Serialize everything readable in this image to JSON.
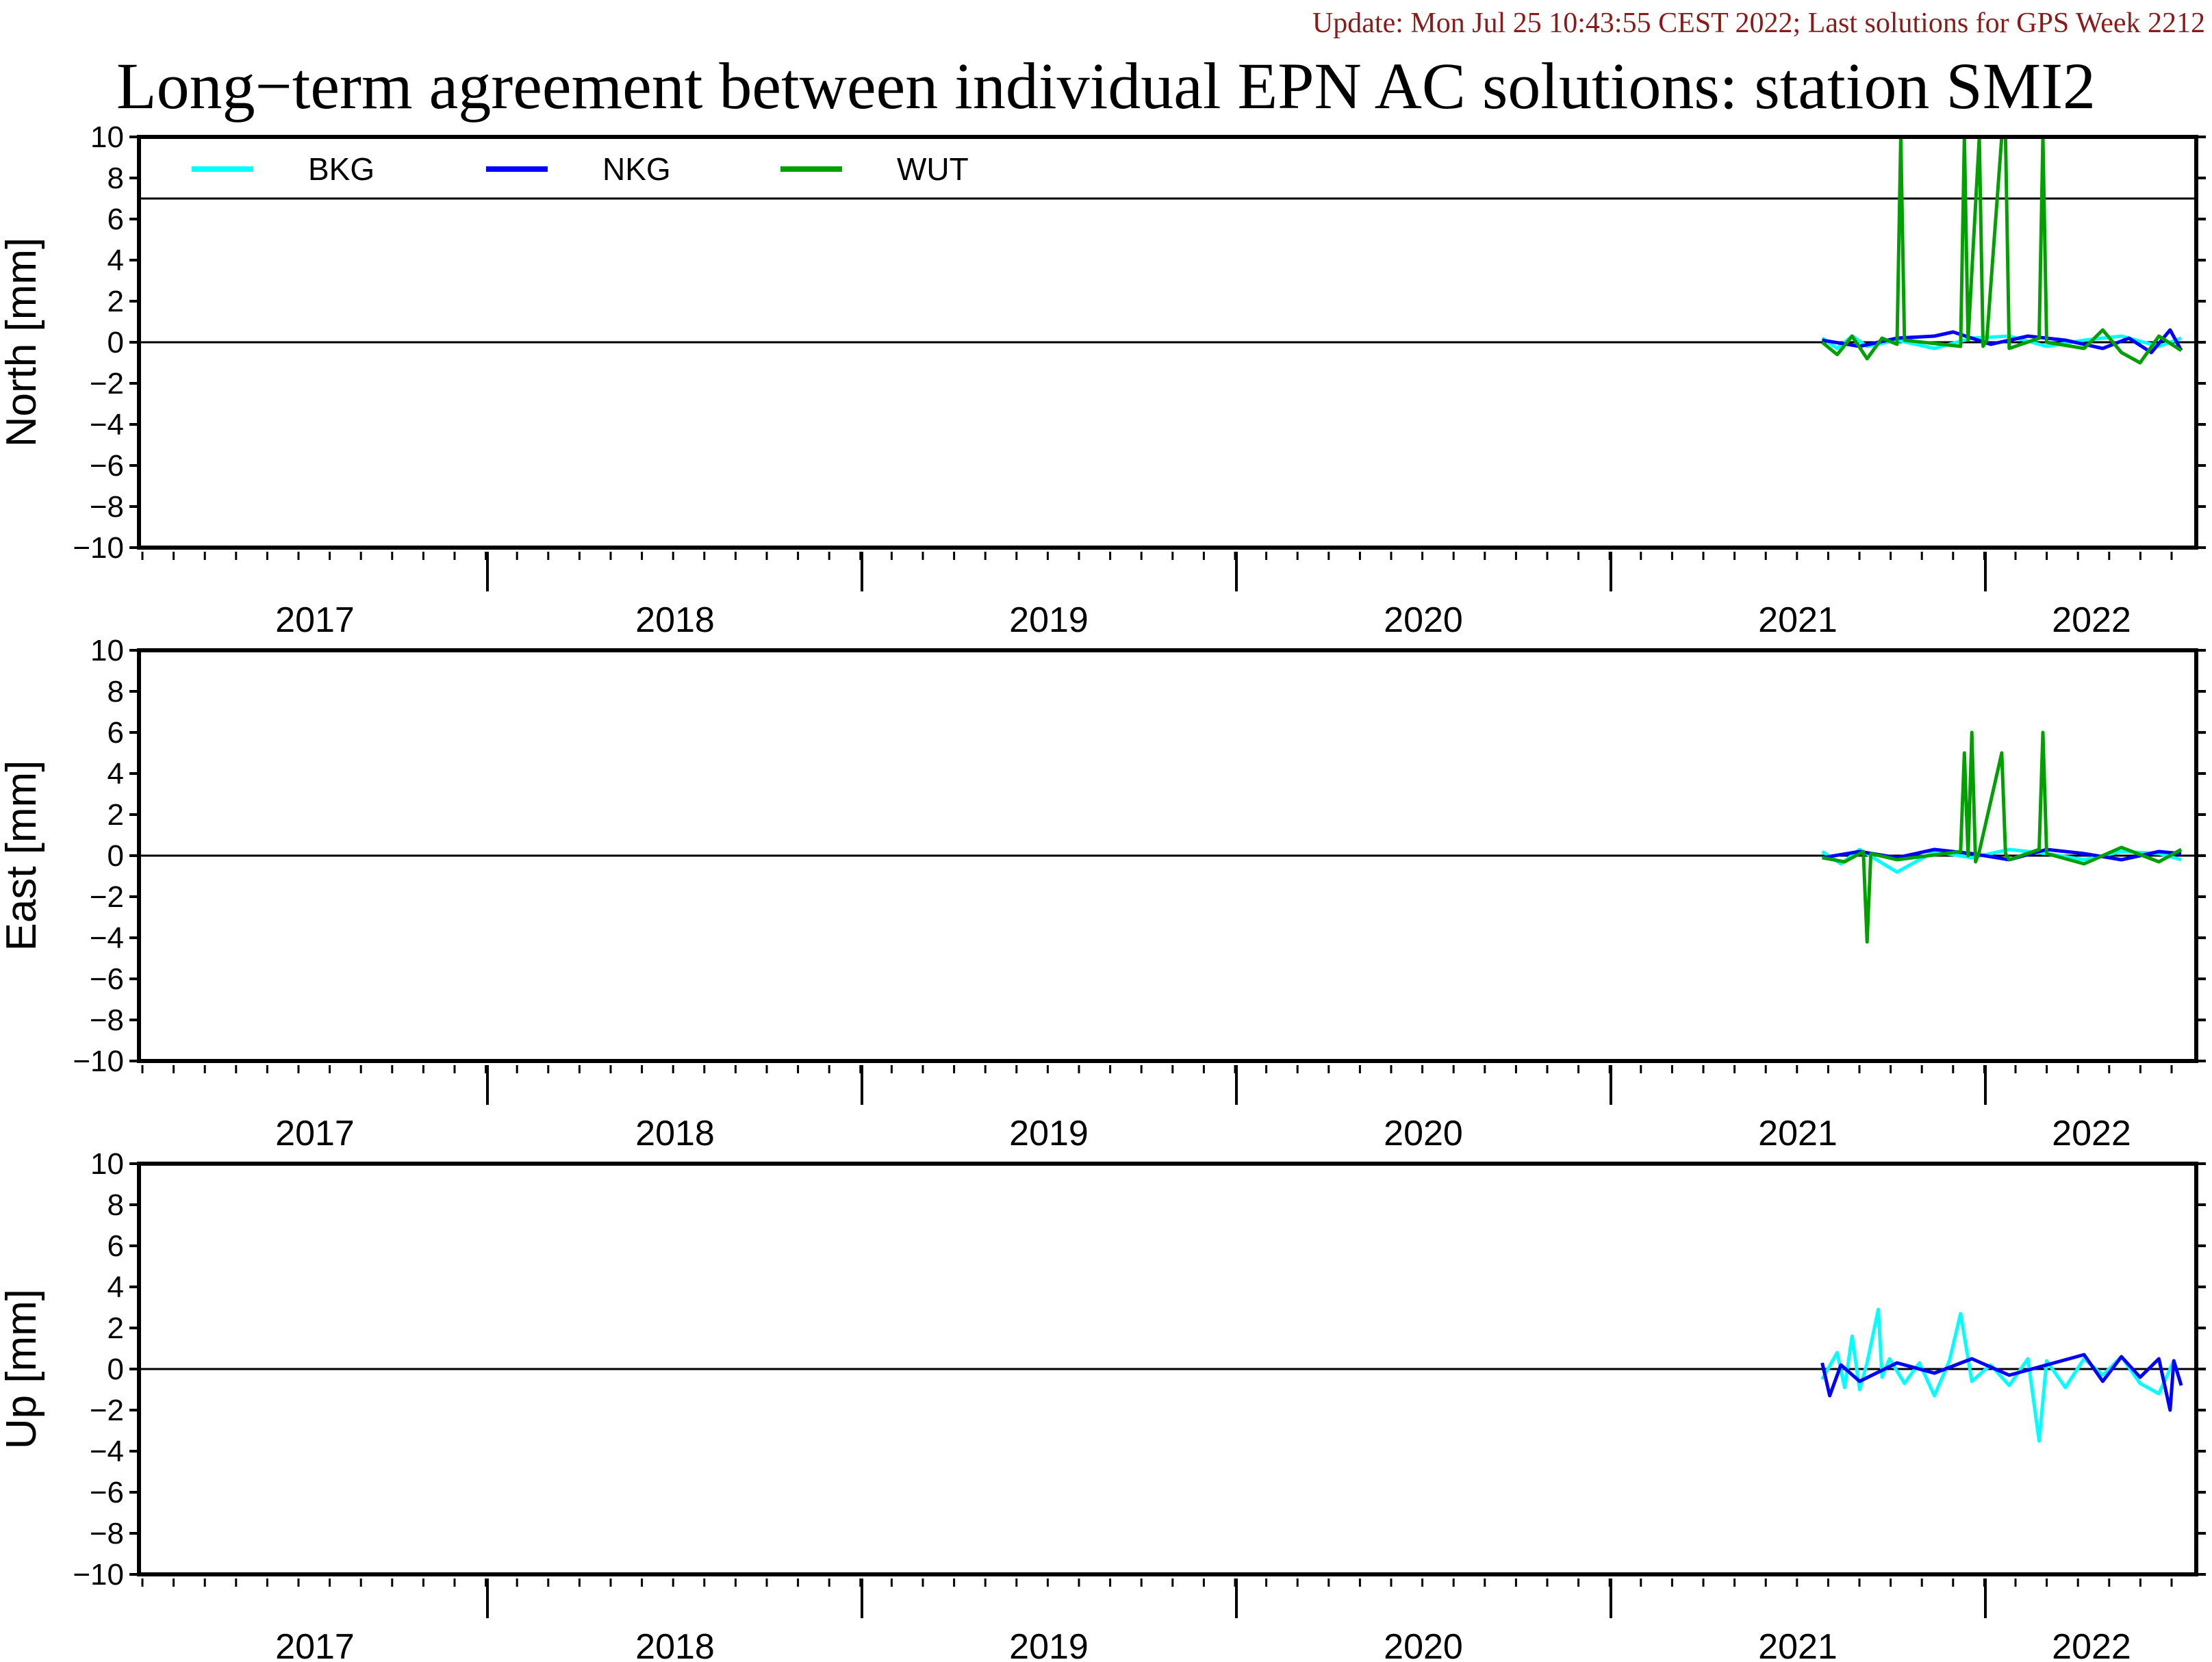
{
  "header": {
    "update_text": "Update: Mon Jul 25 10:43:55 CEST 2022; Last solutions for GPS Week 2212",
    "title": "Long−term agreement between individual EPN AC solutions: station SMI2"
  },
  "chart_data": [
    {
      "type": "line",
      "ylabel": "North [mm]",
      "ylim": [
        -10,
        10
      ],
      "xlim": [
        2016.5,
        2022.0
      ],
      "y_ticks": [
        10,
        8,
        6,
        4,
        2,
        0,
        -2,
        -4,
        -6,
        -8,
        -10
      ],
      "year_labels": [
        "2017",
        "2018",
        "2019",
        "2020",
        "2021",
        "2022"
      ],
      "reference_lines": [
        0,
        7
      ],
      "legend": {
        "placement": "top-left",
        "entries": [
          "BKG",
          "NKG",
          "WUT"
        ]
      },
      "series": [
        {
          "name": "BKG",
          "color": "#00ffff",
          "x": [
            2021.0,
            2021.04,
            2021.08,
            2021.12,
            2021.2,
            2021.3,
            2021.4,
            2021.5,
            2021.6,
            2021.7,
            2021.8,
            2021.9,
            2021.96
          ],
          "y": [
            0.2,
            -0.3,
            0.3,
            -0.2,
            0.1,
            -0.3,
            0.2,
            0.3,
            -0.2,
            0.1,
            0.3,
            -0.2,
            0.2
          ]
        },
        {
          "name": "NKG",
          "color": "#0000ff",
          "x": [
            2021.0,
            2021.1,
            2021.2,
            2021.3,
            2021.35,
            2021.45,
            2021.55,
            2021.65,
            2021.75,
            2021.82,
            2021.88,
            2021.93,
            2021.96
          ],
          "y": [
            0.1,
            -0.2,
            0.2,
            0.3,
            0.5,
            -0.1,
            0.3,
            0.1,
            -0.3,
            0.2,
            -0.5,
            0.6,
            -0.4
          ]
        },
        {
          "name": "WUT",
          "color": "#00a000",
          "x": [
            2021.0,
            2021.04,
            2021.08,
            2021.12,
            2021.16,
            2021.2,
            2021.21,
            2021.22,
            2021.37,
            2021.38,
            2021.39,
            2021.42,
            2021.43,
            2021.44,
            2021.48,
            2021.49,
            2021.5,
            2021.58,
            2021.59,
            2021.6,
            2021.7,
            2021.75,
            2021.8,
            2021.85,
            2021.9,
            2021.96
          ],
          "y": [
            0.0,
            -0.6,
            0.3,
            -0.8,
            0.2,
            -0.1,
            10.0,
            0.1,
            -0.2,
            10.0,
            0.1,
            10.0,
            -0.2,
            0.1,
            10.0,
            10.0,
            -0.3,
            0.2,
            10.0,
            0.0,
            -0.3,
            0.6,
            -0.5,
            -1.0,
            0.3,
            -0.4
          ]
        }
      ]
    },
    {
      "type": "line",
      "ylabel": "East [mm]",
      "ylim": [
        -10,
        10
      ],
      "xlim": [
        2016.5,
        2022.0
      ],
      "y_ticks": [
        10,
        8,
        6,
        4,
        2,
        0,
        -2,
        -4,
        -6,
        -8,
        -10
      ],
      "year_labels": [
        "2017",
        "2018",
        "2019",
        "2020",
        "2021",
        "2022"
      ],
      "reference_lines": [
        0
      ],
      "series": [
        {
          "name": "BKG",
          "color": "#00ffff",
          "x": [
            2021.0,
            2021.05,
            2021.1,
            2021.2,
            2021.3,
            2021.4,
            2021.5,
            2021.6,
            2021.7,
            2021.8,
            2021.9,
            2021.96
          ],
          "y": [
            0.2,
            -0.4,
            0.3,
            -0.8,
            0.2,
            -0.1,
            0.3,
            0.1,
            -0.2,
            0.2,
            0.1,
            -0.2
          ]
        },
        {
          "name": "NKG",
          "color": "#0000ff",
          "x": [
            2021.0,
            2021.1,
            2021.2,
            2021.3,
            2021.4,
            2021.5,
            2021.6,
            2021.7,
            2021.8,
            2021.9,
            2021.96
          ],
          "y": [
            -0.1,
            0.2,
            -0.1,
            0.3,
            0.1,
            -0.2,
            0.3,
            0.1,
            -0.2,
            0.2,
            0.1
          ]
        },
        {
          "name": "WUT",
          "color": "#00a000",
          "x": [
            2021.0,
            2021.06,
            2021.11,
            2021.12,
            2021.13,
            2021.2,
            2021.37,
            2021.38,
            2021.39,
            2021.4,
            2021.41,
            2021.42,
            2021.48,
            2021.49,
            2021.5,
            2021.58,
            2021.59,
            2021.6,
            2021.7,
            2021.8,
            2021.9,
            2021.96
          ],
          "y": [
            -0.1,
            -0.3,
            0.2,
            -4.2,
            0.1,
            -0.2,
            0.2,
            5.0,
            0.0,
            6.0,
            -0.3,
            0.2,
            5.0,
            0.1,
            -0.2,
            0.3,
            6.0,
            0.1,
            -0.4,
            0.4,
            -0.3,
            0.3
          ]
        }
      ]
    },
    {
      "type": "line",
      "ylabel": "Up [mm]",
      "ylim": [
        -10,
        10
      ],
      "xlim": [
        2016.5,
        2022.0
      ],
      "y_ticks": [
        10,
        8,
        6,
        4,
        2,
        0,
        -2,
        -4,
        -6,
        -8,
        -10
      ],
      "year_labels": [
        "2017",
        "2018",
        "2019",
        "2020",
        "2021",
        "2022"
      ],
      "reference_lines": [
        0
      ],
      "series": [
        {
          "name": "BKG",
          "color": "#00ffff",
          "x": [
            2021.0,
            2021.04,
            2021.06,
            2021.08,
            2021.1,
            2021.12,
            2021.15,
            2021.16,
            2021.18,
            2021.22,
            2021.26,
            2021.3,
            2021.34,
            2021.37,
            2021.4,
            2021.45,
            2021.5,
            2021.55,
            2021.58,
            2021.6,
            2021.65,
            2021.7,
            2021.75,
            2021.8,
            2021.85,
            2021.9,
            2021.94,
            2021.96
          ],
          "y": [
            -0.5,
            0.8,
            -0.9,
            1.6,
            -1.0,
            0.3,
            2.9,
            -0.4,
            0.5,
            -0.7,
            0.3,
            -1.3,
            0.4,
            2.7,
            -0.6,
            0.2,
            -0.8,
            0.5,
            -3.5,
            0.4,
            -0.9,
            0.5,
            -0.3,
            0.6,
            -0.7,
            -1.2,
            0.4,
            -0.8
          ]
        },
        {
          "name": "NKG",
          "color": "#0000ff",
          "x": [
            2021.0,
            2021.02,
            2021.05,
            2021.1,
            2021.2,
            2021.3,
            2021.4,
            2021.5,
            2021.6,
            2021.7,
            2021.75,
            2021.8,
            2021.85,
            2021.9,
            2021.93,
            2021.94,
            2021.96
          ],
          "y": [
            0.3,
            -1.3,
            0.2,
            -0.6,
            0.3,
            -0.2,
            0.5,
            -0.3,
            0.2,
            0.7,
            -0.6,
            0.6,
            -0.4,
            0.5,
            -2.0,
            0.4,
            -0.8
          ]
        }
      ]
    }
  ]
}
